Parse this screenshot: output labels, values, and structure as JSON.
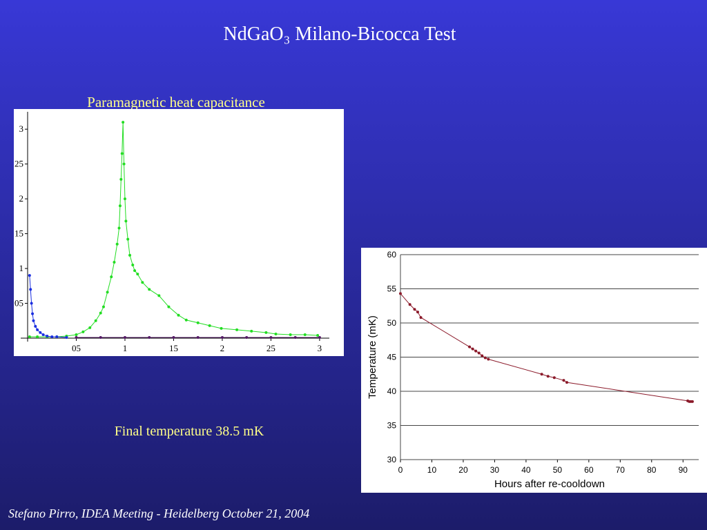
{
  "slide": {
    "title": "NdGaO₃ Milano-Bicocca Test",
    "note": "Final temperature 38.5 mK",
    "footer": "Stefano Pirro, IDEA Meeting - Heidelberg  October 21, 2004"
  },
  "chart_data": [
    {
      "type": "line",
      "title": "Paramagnetic heat capacitance",
      "xlim": [
        0,
        3.1
      ],
      "ylim": [
        0,
        3.2
      ],
      "xticks": [
        {
          "value": 0.5,
          "label": "05"
        },
        1,
        {
          "value": 1.5,
          "label": "15"
        },
        2,
        {
          "value": 2.5,
          "label": "25"
        },
        3
      ],
      "yticks": [
        {
          "value": 0.5,
          "label": "05"
        },
        1,
        {
          "value": 1.5,
          "label": "15"
        },
        2,
        {
          "value": 2.5,
          "label": "25"
        },
        3
      ],
      "grid": false,
      "series": [
        {
          "color": "#22dd22",
          "x": [
            0.02,
            0.1,
            0.2,
            0.3,
            0.4,
            0.5,
            0.57,
            0.64,
            0.7,
            0.75,
            0.78,
            0.82,
            0.86,
            0.89,
            0.92,
            0.94,
            0.95,
            0.96,
            0.97,
            0.98,
            0.99,
            1.0,
            1.01,
            1.03,
            1.05,
            1.08,
            1.1,
            1.13,
            1.18,
            1.25,
            1.35,
            1.45,
            1.55,
            1.63,
            1.75,
            1.87,
            1.99,
            2.15,
            2.3,
            2.45,
            2.55,
            2.7,
            2.85,
            2.98
          ],
          "values": [
            0.02,
            0.02,
            0.02,
            0.02,
            0.03,
            0.05,
            0.09,
            0.15,
            0.25,
            0.36,
            0.45,
            0.66,
            0.88,
            1.09,
            1.35,
            1.58,
            1.9,
            2.28,
            2.65,
            3.1,
            2.5,
            2.0,
            1.68,
            1.42,
            1.19,
            1.05,
            0.97,
            0.92,
            0.8,
            0.7,
            0.61,
            0.45,
            0.33,
            0.26,
            0.22,
            0.18,
            0.14,
            0.12,
            0.1,
            0.08,
            0.06,
            0.05,
            0.05,
            0.04
          ]
        },
        {
          "color": "#1a2ee0",
          "x": [
            0.02,
            0.03,
            0.04,
            0.05,
            0.06,
            0.08,
            0.1,
            0.13,
            0.16,
            0.2,
            0.25,
            0.3,
            0.4
          ],
          "values": [
            0.9,
            0.7,
            0.5,
            0.35,
            0.25,
            0.17,
            0.12,
            0.08,
            0.05,
            0.03,
            0.02,
            0.02,
            0.01
          ]
        },
        {
          "color": "#551a66",
          "x": [
            0.5,
            0.75,
            1.0,
            1.25,
            1.5,
            1.75,
            2.0,
            2.25,
            2.5,
            2.75,
            3.0
          ],
          "values": [
            0.01,
            0.01,
            0.01,
            0.01,
            0.01,
            0.01,
            0.01,
            0.01,
            0.01,
            0.01,
            0.01
          ]
        }
      ]
    },
    {
      "type": "line",
      "xlabel": "Hours after re-cooldown",
      "ylabel": "Temperature (mK)",
      "xlim": [
        0,
        95
      ],
      "ylim": [
        30,
        60
      ],
      "xticks": [
        0,
        10,
        20,
        30,
        40,
        50,
        60,
        70,
        80,
        90
      ],
      "yticks": [
        30,
        35,
        40,
        45,
        50,
        55,
        60
      ],
      "grid": true,
      "series": [
        {
          "color": "#8b1a2a",
          "x": [
            0,
            3,
            4.5,
            5.5,
            6.5,
            22,
            23,
            24,
            25,
            26,
            27,
            28,
            45,
            47,
            49,
            52,
            53,
            91.5,
            92,
            92.5,
            93
          ],
          "values": [
            54.3,
            52.7,
            52.0,
            51.6,
            50.8,
            46.5,
            46.2,
            45.9,
            45.6,
            45.2,
            44.9,
            44.7,
            42.5,
            42.2,
            42.0,
            41.6,
            41.3,
            38.6,
            38.5,
            38.5,
            38.5
          ]
        }
      ]
    }
  ]
}
